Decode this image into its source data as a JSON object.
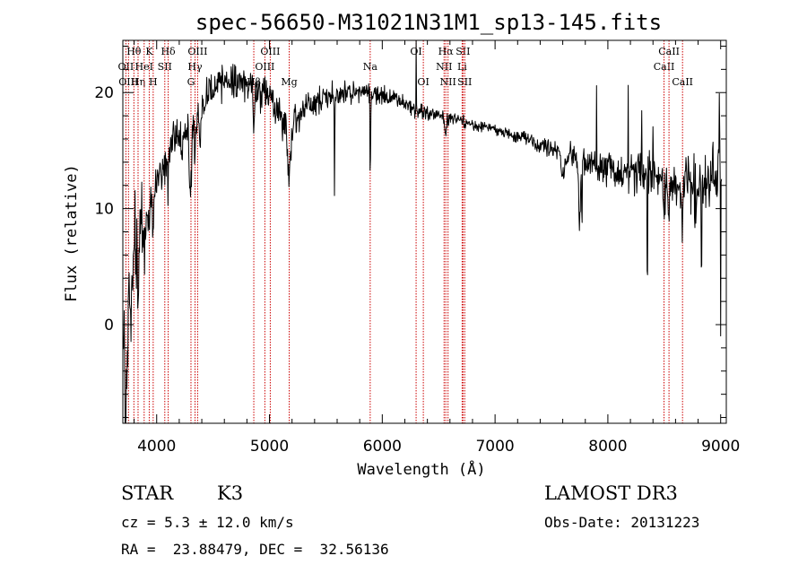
{
  "chart_data": {
    "type": "line",
    "title": "spec-56650-M31021N31M1_sp13-145.fits",
    "xlabel": "Wavelength (Å)",
    "ylabel": "Flux (relative)",
    "xlim": [
      3700,
      9050
    ],
    "ylim": [
      -8.5,
      24.5
    ],
    "xticks": [
      4000,
      5000,
      6000,
      7000,
      8000,
      9000
    ],
    "yticks": [
      0,
      10,
      20
    ],
    "x_minor_step": 200,
    "y_minor_step": 2,
    "colors": {
      "line": "#000000",
      "marker": "#cc0000",
      "axes": "#000000"
    },
    "continuum": [
      [
        3700,
        1
      ],
      [
        3760,
        4
      ],
      [
        3800,
        6
      ],
      [
        3850,
        8
      ],
      [
        3900,
        10
      ],
      [
        3950,
        12
      ],
      [
        4000,
        13
      ],
      [
        4050,
        13.5
      ],
      [
        4100,
        15
      ],
      [
        4200,
        16.5
      ],
      [
        4300,
        17
      ],
      [
        4400,
        19
      ],
      [
        4500,
        20.5
      ],
      [
        4600,
        20.8
      ],
      [
        4700,
        21
      ],
      [
        4800,
        20.8
      ],
      [
        4900,
        20
      ],
      [
        5000,
        19.5
      ],
      [
        5100,
        18
      ],
      [
        5200,
        17.5
      ],
      [
        5300,
        18.5
      ],
      [
        5400,
        19
      ],
      [
        5500,
        19.5
      ],
      [
        5600,
        19.7
      ],
      [
        5700,
        19.9
      ],
      [
        5800,
        20
      ],
      [
        5900,
        20
      ],
      [
        6000,
        19.8
      ],
      [
        6100,
        19.5
      ],
      [
        6200,
        19
      ],
      [
        6300,
        18.5
      ],
      [
        6400,
        18.3
      ],
      [
        6500,
        18
      ],
      [
        6600,
        17.8
      ],
      [
        6700,
        17.5
      ],
      [
        6800,
        17.2
      ],
      [
        6900,
        17
      ],
      [
        7000,
        16.8
      ],
      [
        7100,
        16.5
      ],
      [
        7200,
        16.2
      ],
      [
        7300,
        16
      ],
      [
        7400,
        15.5
      ],
      [
        7500,
        15
      ],
      [
        7600,
        14.8
      ],
      [
        7700,
        14.5
      ],
      [
        7800,
        14
      ],
      [
        7900,
        13.8
      ],
      [
        8000,
        13.5
      ],
      [
        8100,
        13.3
      ],
      [
        8200,
        13.5
      ],
      [
        8300,
        13
      ],
      [
        8400,
        12.8
      ],
      [
        8500,
        12.5
      ],
      [
        8600,
        12
      ],
      [
        8700,
        12
      ],
      [
        8800,
        11.5
      ],
      [
        8900,
        12
      ],
      [
        9000,
        13
      ]
    ],
    "noise": [
      [
        3700,
        3.5
      ],
      [
        4000,
        1.5
      ],
      [
        4500,
        1
      ],
      [
        5000,
        1.2
      ],
      [
        5500,
        0.8
      ],
      [
        6000,
        0.6
      ],
      [
        6500,
        0.4
      ],
      [
        7000,
        0.3
      ],
      [
        7500,
        0.5
      ],
      [
        8000,
        1.2
      ],
      [
        8500,
        1.5
      ],
      [
        9000,
        2
      ]
    ],
    "features": [
      {
        "x": 3724,
        "depth": 12,
        "w": 8
      },
      {
        "x": 3740,
        "depth": 8,
        "w": 8
      },
      {
        "x": 3770,
        "depth": 5,
        "w": 10
      },
      {
        "x": 3835,
        "depth": 4,
        "w": 10
      },
      {
        "x": 3889,
        "depth": 4,
        "w": 10
      },
      {
        "x": 3934,
        "depth": 4,
        "w": 12
      },
      {
        "x": 3969,
        "depth": 4,
        "w": 12
      },
      {
        "x": 4102,
        "depth": 3,
        "w": 12
      },
      {
        "x": 4226,
        "depth": 2,
        "w": 10
      },
      {
        "x": 4300,
        "depth": 5,
        "w": 15
      },
      {
        "x": 4340,
        "depth": 2.5,
        "w": 10
      },
      {
        "x": 4383,
        "depth": 3,
        "w": 10
      },
      {
        "x": 4861,
        "depth": 2.5,
        "w": 10
      },
      {
        "x": 5170,
        "depth": 5,
        "w": 20
      },
      {
        "x": 5577,
        "depth": 10,
        "w": 3
      },
      {
        "x": 5893,
        "depth": 7,
        "w": 6
      },
      {
        "x": 6563,
        "depth": 1.5,
        "w": 10
      },
      {
        "x": 7600,
        "depth": 2,
        "w": 20
      },
      {
        "x": 7750,
        "depth": 6,
        "w": 10
      },
      {
        "x": 7770,
        "depth": 8,
        "w": 3
      },
      {
        "x": 8350,
        "depth": 13,
        "w": 3
      },
      {
        "x": 8498,
        "depth": 3,
        "w": 8
      },
      {
        "x": 8542,
        "depth": 4,
        "w": 8
      },
      {
        "x": 8662,
        "depth": 4,
        "w": 8
      },
      {
        "x": 8770,
        "depth": 5,
        "w": 3
      },
      {
        "x": 8830,
        "depth": 9,
        "w": 3
      },
      {
        "x": 9000,
        "depth": 12,
        "w": 3
      }
    ],
    "spikes": [
      {
        "x": 5889,
        "height": 4.5
      },
      {
        "x": 6300,
        "height": 8
      },
      {
        "x": 7900,
        "height": 7
      },
      {
        "x": 8180,
        "height": 6
      },
      {
        "x": 8300,
        "height": 5
      },
      {
        "x": 8400,
        "height": 4
      },
      {
        "x": 8930,
        "height": 4
      },
      {
        "x": 8990,
        "height": 4
      }
    ],
    "line_markers": [
      {
        "x": 3727,
        "label": "OII",
        "row": 2
      },
      {
        "x": 3750,
        "label": "OIII",
        "row": 3
      },
      {
        "x": 3798,
        "label": "Hθ",
        "row": 1
      },
      {
        "x": 3835,
        "label": "Hη",
        "row": 3
      },
      {
        "x": 3889,
        "label": "HeI",
        "row": 2
      },
      {
        "x": 3934,
        "label": "K",
        "row": 1
      },
      {
        "x": 3969,
        "label": "H",
        "row": 3
      },
      {
        "x": 4072,
        "label": "SII",
        "row": 2
      },
      {
        "x": 4102,
        "label": "Hδ",
        "row": 1
      },
      {
        "x": 4304,
        "label": "G",
        "row": 3
      },
      {
        "x": 4340,
        "label": "Hγ",
        "row": 2
      },
      {
        "x": 4363,
        "label": "OIII",
        "row": 1
      },
      {
        "x": 4861,
        "label": "Hβ",
        "row": 3
      },
      {
        "x": 4959,
        "label": "OIII",
        "row": 2
      },
      {
        "x": 5007,
        "label": "OIII",
        "row": 1
      },
      {
        "x": 5175,
        "label": "Mg",
        "row": 3
      },
      {
        "x": 5893,
        "label": "Na",
        "row": 2
      },
      {
        "x": 6300,
        "label": "OI",
        "row": 1
      },
      {
        "x": 6364,
        "label": "OI",
        "row": 3
      },
      {
        "x": 6548,
        "label": "NII",
        "row": 2
      },
      {
        "x": 6563,
        "label": "Hα",
        "row": 1
      },
      {
        "x": 6583,
        "label": "NII",
        "row": 3
      },
      {
        "x": 6708,
        "label": "Li",
        "row": 2
      },
      {
        "x": 6716,
        "label": "SII",
        "row": 1
      },
      {
        "x": 6731,
        "label": "SII",
        "row": 3
      },
      {
        "x": 8498,
        "label": "CaII",
        "row": 2
      },
      {
        "x": 8542,
        "label": "CaII",
        "row": 1
      },
      {
        "x": 8662,
        "label": "CaII",
        "row": 3
      }
    ]
  },
  "info": {
    "object_class": "STAR",
    "subclass": "K3",
    "survey": "LAMOST DR3",
    "cz": "cz = 5.3 ± 12.0 km/s",
    "obs_date": "Obs-Date: 20131223",
    "coords": "RA =  23.88479, DEC =  32.56136"
  }
}
